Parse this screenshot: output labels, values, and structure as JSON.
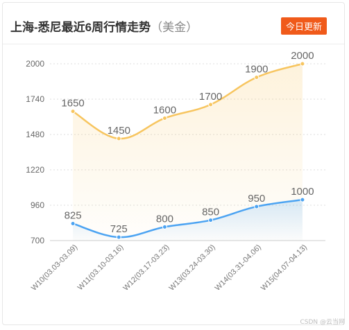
{
  "header": {
    "title": "上海-悉尼最近6周行情走势",
    "unit": "（美金）",
    "badge": "今日更新"
  },
  "watermark": "CSDN @云当网",
  "colors": {
    "series_high": "#f7c55f",
    "series_low": "#4ba3f2",
    "badge": "#f05a1a"
  },
  "chart_data": {
    "type": "line",
    "title": "上海-悉尼最近6周行情走势",
    "categories": [
      "W10(03.03-03.09)",
      "W11(03.10-03.16)",
      "W12(03.17-03.23)",
      "W13(03.24-03.30)",
      "W14(03.31-04.06)",
      "W15(04.07-04.13)"
    ],
    "series": [
      {
        "values": [
          1650,
          1450,
          1600,
          1700,
          1900,
          2000
        ]
      },
      {
        "values": [
          825,
          725,
          800,
          850,
          950,
          1000
        ]
      }
    ],
    "yticks": [
      700,
      960,
      1220,
      1480,
      1740,
      2000
    ],
    "ylim": [
      700,
      2000
    ],
    "grid": true,
    "area_fill": true,
    "smooth": true,
    "data_labels": true
  }
}
